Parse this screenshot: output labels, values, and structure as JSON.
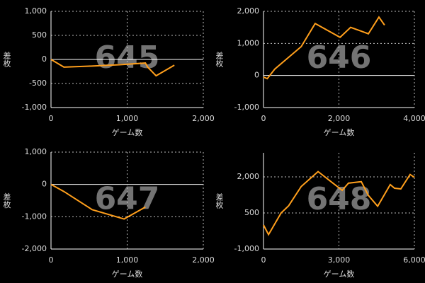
{
  "chart_data": [
    {
      "type": "line",
      "label": "645",
      "xlabel": "ゲーム数",
      "ylabel": "差枚",
      "color": "#ff9f1c",
      "xlim": [
        0,
        2000
      ],
      "ylim": [
        -1000,
        1000
      ],
      "xticks": [
        0,
        {
          "value": 1000,
          "label": "1,000"
        },
        {
          "value": 2000,
          "label": "2,000"
        }
      ],
      "yticks": [
        {
          "value": -1000,
          "label": "-1,000"
        },
        -500,
        0,
        500,
        {
          "value": 1000,
          "label": "1,000"
        }
      ],
      "x": [
        0,
        170,
        500,
        900,
        1240,
        1270,
        1380,
        1620
      ],
      "values": [
        0,
        -160,
        -140,
        -110,
        -75,
        -160,
        -340,
        -120
      ]
    },
    {
      "type": "line",
      "label": "646",
      "xlabel": "ゲーム数",
      "ylabel": "差枚",
      "color": "#ff9f1c",
      "xlim": [
        0,
        4000
      ],
      "ylim": [
        -1000,
        2000
      ],
      "xticks": [
        0,
        {
          "value": 2000,
          "label": "2,000"
        },
        {
          "value": 4000,
          "label": "4,000"
        }
      ],
      "yticks": [
        {
          "value": -1000,
          "label": "-1,000"
        },
        0,
        {
          "value": 1000,
          "label": "1,000"
        },
        {
          "value": 2000,
          "label": "2,000"
        }
      ],
      "x": [
        0,
        100,
        300,
        600,
        1000,
        1370,
        2030,
        2310,
        2780,
        3060,
        3210
      ],
      "values": [
        -50,
        -100,
        200,
        500,
        900,
        1620,
        1190,
        1500,
        1300,
        1820,
        1570
      ]
    },
    {
      "type": "line",
      "label": "647",
      "xlabel": "ゲーム数",
      "ylabel": "差枚",
      "color": "#ff9f1c",
      "xlim": [
        0,
        2000
      ],
      "ylim": [
        -2000,
        1000
      ],
      "xticks": [
        0,
        {
          "value": 1000,
          "label": "1,000"
        },
        {
          "value": 2000,
          "label": "2,000"
        }
      ],
      "yticks": [
        {
          "value": -2000,
          "label": "-2,000"
        },
        {
          "value": -1000,
          "label": "-1,000"
        },
        0,
        {
          "value": 1000,
          "label": "1,000"
        }
      ],
      "x": [
        0,
        170,
        540,
        960,
        1240
      ],
      "values": [
        0,
        -220,
        -780,
        -1070,
        -700
      ]
    },
    {
      "type": "line",
      "label": "648",
      "xlabel": "ゲーム数",
      "ylabel": "差枚",
      "color": "#ff9f1c",
      "xlim": [
        0,
        6000
      ],
      "ylim": [
        -1000,
        3000
      ],
      "xticks": [
        0,
        {
          "value": 3000,
          "label": "3,000"
        },
        {
          "value": 6000,
          "label": "6,000"
        }
      ],
      "yticks": [
        {
          "value": -1000,
          "label": "-1,000"
        },
        500,
        {
          "value": 2000,
          "label": "2,000"
        }
      ],
      "x": [
        0,
        200,
        700,
        1000,
        1500,
        2170,
        3130,
        3380,
        3890,
        4170,
        4540,
        5040,
        5210,
        5460,
        5830,
        6000
      ],
      "values": [
        0,
        -400,
        500,
        800,
        1600,
        2220,
        1440,
        1740,
        1800,
        1230,
        780,
        1680,
        1530,
        1500,
        2100,
        1980
      ]
    }
  ]
}
